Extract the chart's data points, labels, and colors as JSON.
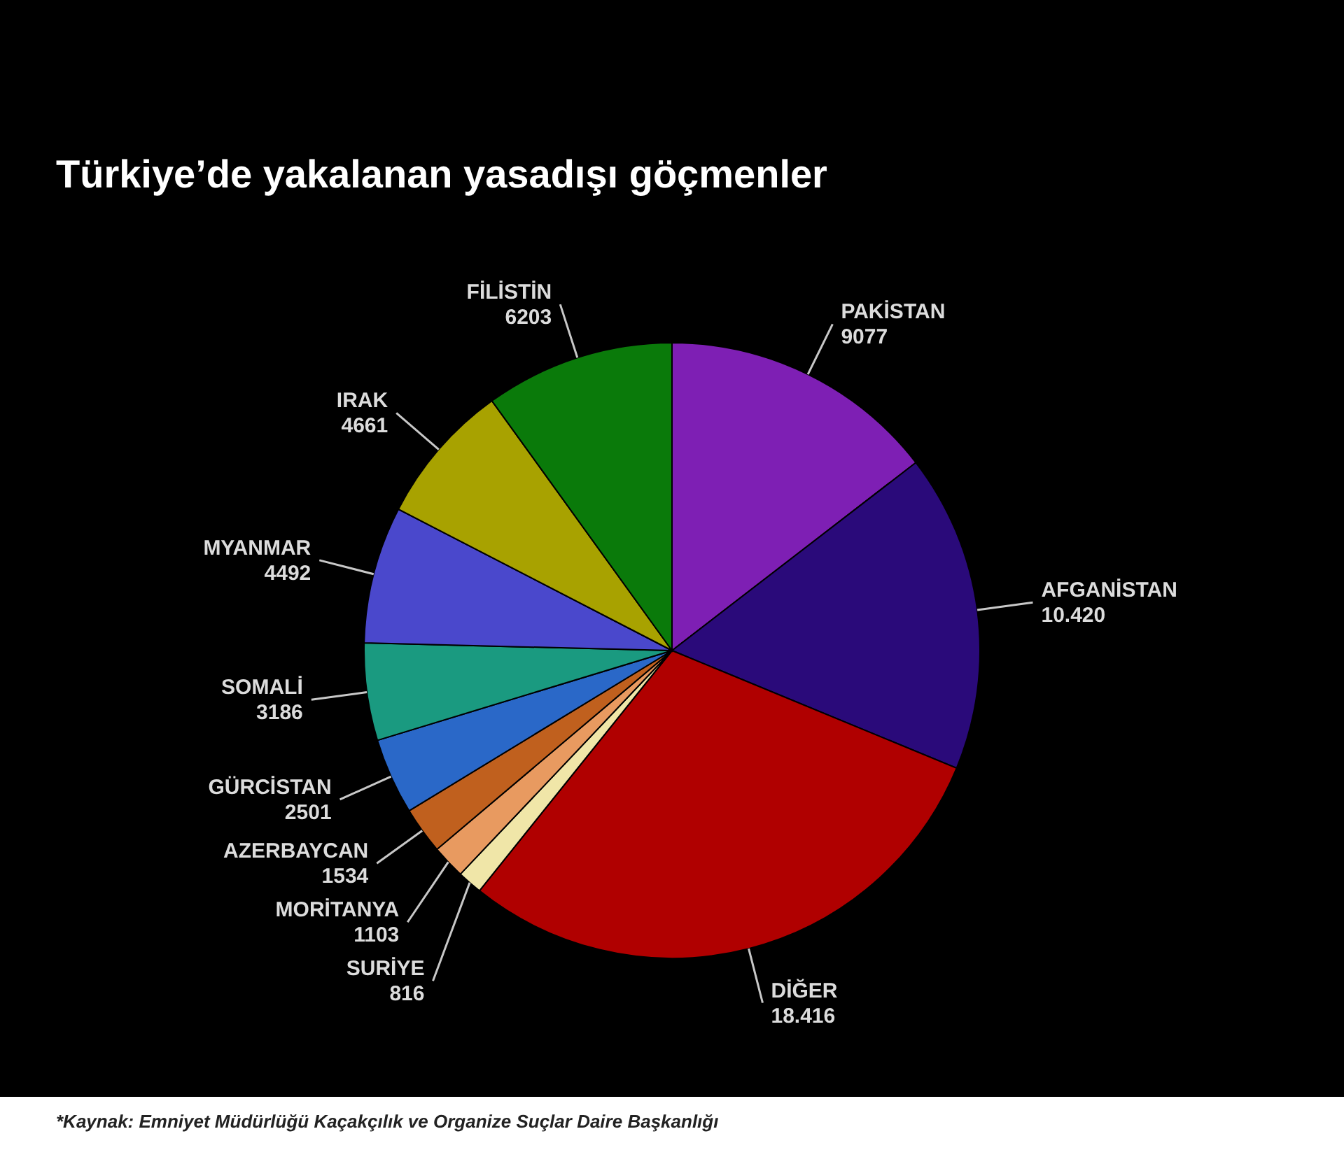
{
  "chart_data": {
    "type": "pie",
    "title": "Türkiye’de yakalanan yasadışı göçmenler",
    "categories": [
      "PAKİSTAN",
      "AFGANİSTAN",
      "DİĞER",
      "SURİYE",
      "MORİTANYA",
      "AZERBAYCAN",
      "GÜRCİSTAN",
      "SOMALİ",
      "MYANMAR",
      "IRAK",
      "FİLİSTİN"
    ],
    "values": [
      9077,
      10420,
      18416,
      816,
      1103,
      1534,
      2501,
      3186,
      4492,
      4661,
      6203
    ],
    "value_labels": [
      "9077",
      "10.420",
      "18.416",
      "816",
      "1103",
      "1534",
      "2501",
      "3186",
      "4492",
      "4661",
      "6203"
    ],
    "colors": [
      "#7e1fb4",
      "#2a0a7a",
      "#b00000",
      "#f0e6a8",
      "#e89a60",
      "#c0601e",
      "#2a68c8",
      "#1a9a80",
      "#4a48cc",
      "#a8a200",
      "#0a7a0a"
    ],
    "annotations": [
      "*Kaynak: Emniyet Müdürlüğü Kaçakçılık ve Organize Suçlar Daire Başkanlığı"
    ]
  }
}
